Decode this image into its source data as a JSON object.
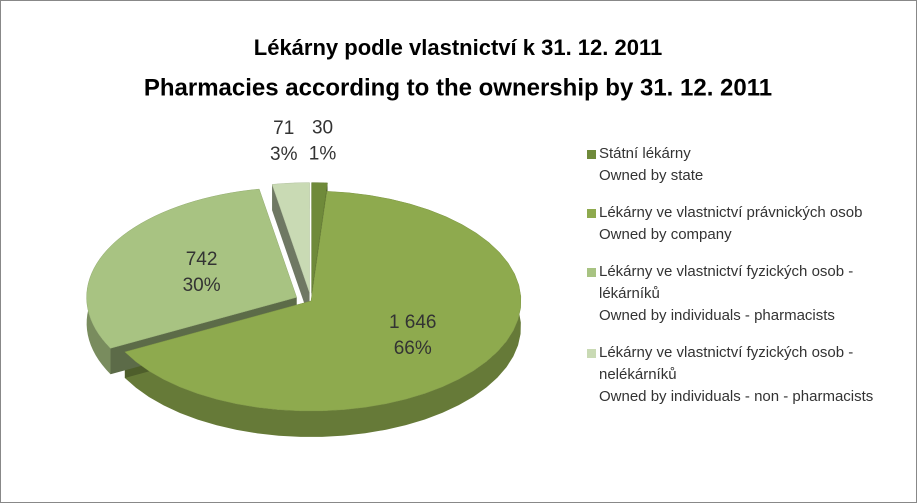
{
  "chart_data": {
    "type": "pie",
    "title": "Lékárny podle vlastnictví k 31. 12. 2011",
    "subtitle": "Pharmacies according to the ownership by 31. 12. 2011",
    "categories": [
      "Státní lékárny\nOwned by state",
      "Lékárny ve vlastnictví právnických osob\nOwned by company",
      "Lékárny ve vlastnictví fyzických osob - lékárníků\nOwned by individuals - pharmacists",
      "Lékárny ve vlastnictví fyzických osob - nelékárníků\nOwned by individuals - non - pharmacists"
    ],
    "values": [
      30,
      1646,
      742,
      71
    ],
    "value_labels": [
      "30",
      "1 646",
      "742",
      "71"
    ],
    "percent_labels": [
      "1%",
      "66%",
      "30%",
      "3%"
    ],
    "colors": [
      "#6f8a3a",
      "#8eaa4e",
      "#a8c382",
      "#c9dab4"
    ],
    "legend": "right"
  }
}
